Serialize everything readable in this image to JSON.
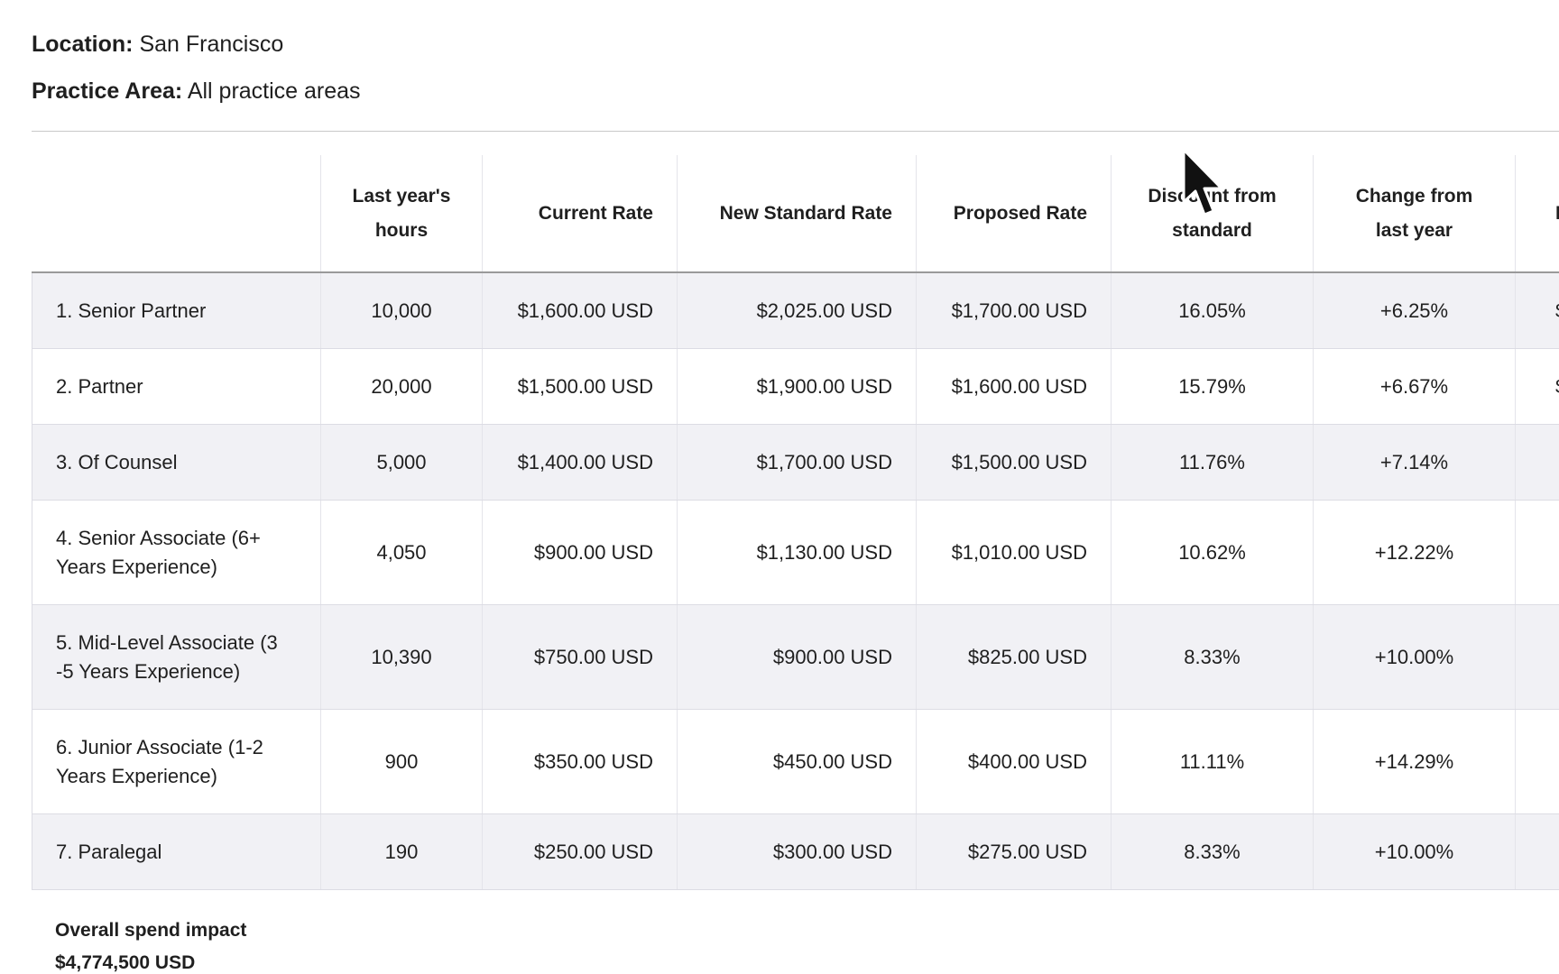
{
  "filters": {
    "location_label": "Location:",
    "location_value": "San Francisco",
    "practice_label": "Practice Area:",
    "practice_value": "All practice areas"
  },
  "table": {
    "headers": {
      "last_hours": "Last year's hours",
      "current_rate": "Current Rate",
      "new_standard_rate": "New Standard Rate",
      "proposed_rate": "Proposed Rate",
      "discount": "Discount from standard",
      "change": "Change from last year",
      "partial": "L"
    },
    "rows": [
      {
        "role": "1. Senior Partner",
        "hours": "10,000",
        "current": "$1,600.00 USD",
        "standard": "$2,025.00 USD",
        "proposed": "$1,700.00 USD",
        "discount": "16.05%",
        "change": "+6.25%",
        "partial": "$"
      },
      {
        "role": "2. Partner",
        "hours": "20,000",
        "current": "$1,500.00 USD",
        "standard": "$1,900.00 USD",
        "proposed": "$1,600.00 USD",
        "discount": "15.79%",
        "change": "+6.67%",
        "partial": "$"
      },
      {
        "role": "3. Of Counsel",
        "hours": "5,000",
        "current": "$1,400.00 USD",
        "standard": "$1,700.00 USD",
        "proposed": "$1,500.00 USD",
        "discount": "11.76%",
        "change": "+7.14%",
        "partial": ""
      },
      {
        "role": "4. Senior Associate (6+ Years Experience)",
        "hours": "4,050",
        "current": "$900.00 USD",
        "standard": "$1,130.00 USD",
        "proposed": "$1,010.00 USD",
        "discount": "10.62%",
        "change": "+12.22%",
        "partial": ""
      },
      {
        "role": "5. Mid-Level Associate (3 -5 Years Experience)",
        "hours": "10,390",
        "current": "$750.00 USD",
        "standard": "$900.00 USD",
        "proposed": "$825.00 USD",
        "discount": "8.33%",
        "change": "+10.00%",
        "partial": ""
      },
      {
        "role": "6. Junior Associate (1-2 Years Experience)",
        "hours": "900",
        "current": "$350.00 USD",
        "standard": "$450.00 USD",
        "proposed": "$400.00 USD",
        "discount": "11.11%",
        "change": "+14.29%",
        "partial": ""
      },
      {
        "role": "7. Paralegal",
        "hours": "190",
        "current": "$250.00 USD",
        "standard": "$300.00 USD",
        "proposed": "$275.00 USD",
        "discount": "8.33%",
        "change": "+10.00%",
        "partial": ""
      }
    ]
  },
  "summary": {
    "label": "Overall spend impact",
    "value": "$4,774,500 USD"
  },
  "icons": {
    "cursor": "mouse-pointer-icon"
  }
}
